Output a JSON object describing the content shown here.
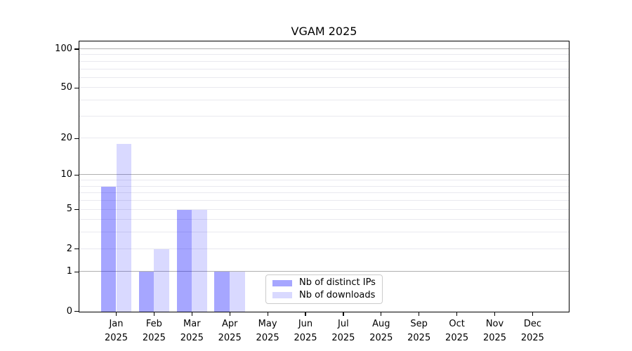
{
  "chart_data": {
    "type": "bar",
    "title": "VGAM 2025",
    "categories": [
      "Jan",
      "Feb",
      "Mar",
      "Apr",
      "May",
      "Jun",
      "Jul",
      "Aug",
      "Sep",
      "Oct",
      "Nov",
      "Dec"
    ],
    "category_year": "2025",
    "series": [
      {
        "name": "Nb of distinct IPs",
        "color": "rgba(0,0,255,0.35)",
        "values": [
          8,
          1,
          5,
          1,
          0,
          0,
          0,
          0,
          0,
          0,
          0,
          0
        ]
      },
      {
        "name": "Nb of downloads",
        "color": "rgba(0,0,255,0.15)",
        "values": [
          18,
          2,
          5,
          1,
          0,
          0,
          0,
          0,
          0,
          0,
          0,
          0
        ]
      }
    ],
    "y_axis": {
      "scale": "log1p",
      "ticks": [
        0,
        1,
        2,
        5,
        10,
        20,
        50,
        100
      ],
      "major_gridline_values": [
        1,
        10,
        100
      ],
      "minor_gridline_values": [
        2,
        3,
        4,
        5,
        6,
        7,
        8,
        9,
        20,
        30,
        40,
        50,
        60,
        70,
        80,
        90
      ],
      "ylim": [
        0,
        107
      ]
    },
    "grid": true,
    "legend_position": "lower-center",
    "colors": {
      "gridline_major": "#b0b0b0",
      "gridline_minor": "#e9e9ef",
      "spine": "#000000",
      "legend_border": "#cccccc"
    }
  }
}
